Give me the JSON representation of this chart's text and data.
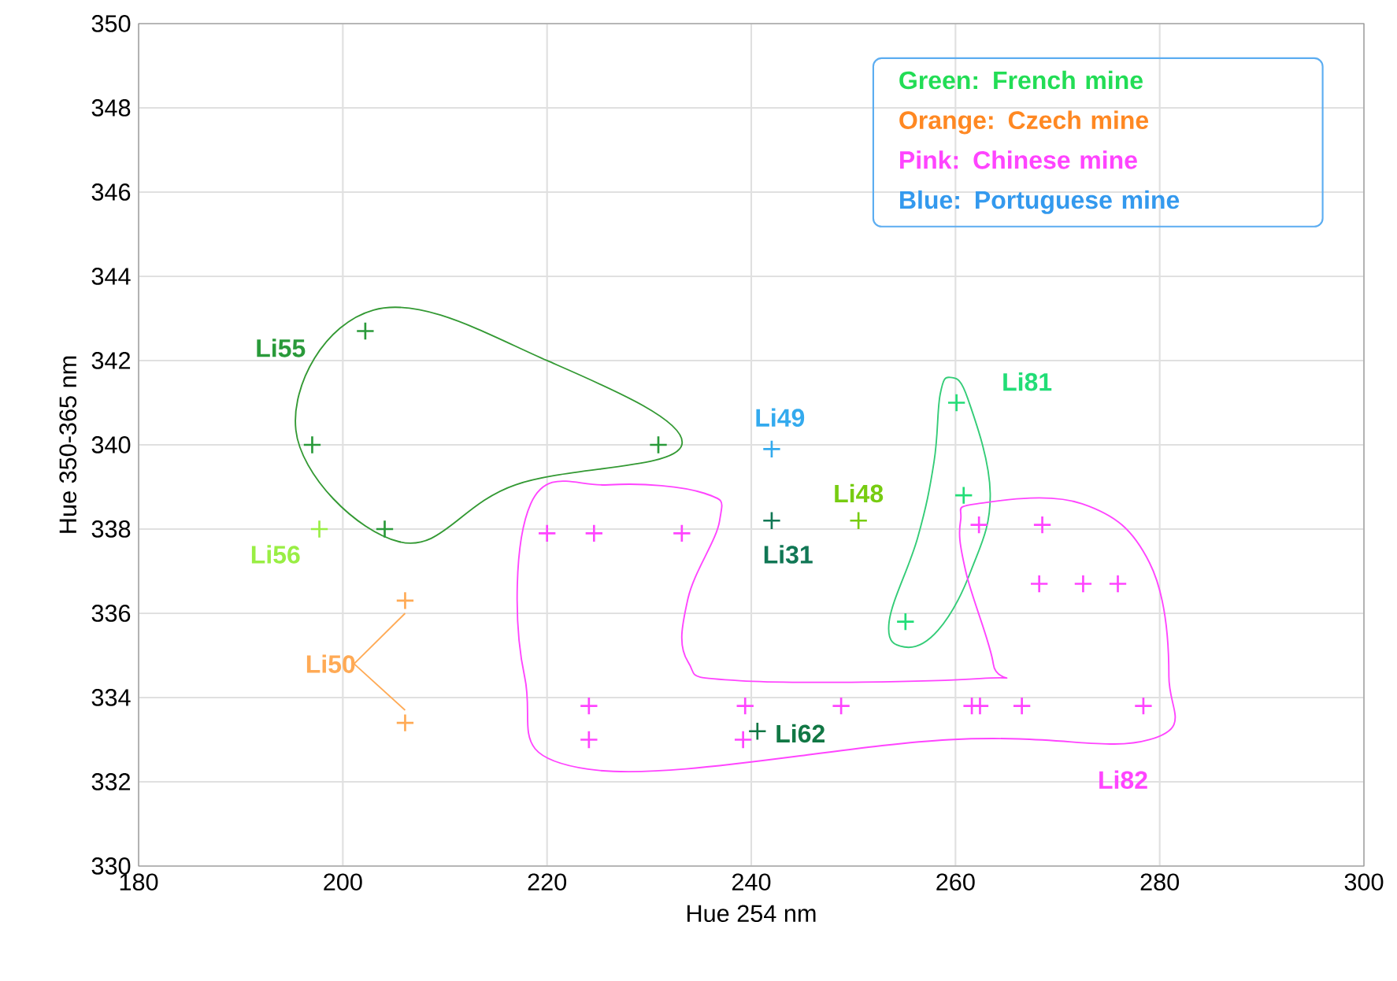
{
  "chart_data": {
    "type": "scatter",
    "xlabel": "Hue 254 nm",
    "ylabel": "Hue 350-365 nm",
    "xlim": [
      180,
      300
    ],
    "ylim": [
      330,
      350
    ],
    "xticks": [
      180,
      200,
      220,
      240,
      260,
      280,
      300
    ],
    "yticks": [
      330,
      332,
      334,
      336,
      338,
      340,
      342,
      344,
      346,
      348,
      350
    ],
    "grid": true,
    "marker": "cross",
    "annotations": [
      "Green: French mine",
      "Orange: Czech mine",
      "Pink: Chinese mine",
      "Blue: Portuguese mine"
    ],
    "series": [
      {
        "name": "Li55",
        "color": "#2a9a3a",
        "x": [
          202.2,
          197.0,
          230.9,
          204.1
        ],
        "values": [
          342.7,
          340.0,
          340.0,
          338.0
        ]
      },
      {
        "name": "Li56",
        "color": "#99ee44",
        "x": [
          197.7
        ],
        "values": [
          338.0
        ]
      },
      {
        "name": "Li50",
        "color": "#ffaa55",
        "x": [
          206.1,
          206.1
        ],
        "values": [
          336.3,
          333.4
        ]
      },
      {
        "name": "Li49",
        "color": "#33aaee",
        "x": [
          242.0
        ],
        "values": [
          339.9
        ]
      },
      {
        "name": "Li31",
        "color": "#117755",
        "x": [
          242.0
        ],
        "values": [
          338.2
        ]
      },
      {
        "name": "Li48",
        "color": "#77cc11",
        "x": [
          250.5
        ],
        "values": [
          338.2
        ]
      },
      {
        "name": "Li62",
        "color": "#117744",
        "x": [
          240.6
        ],
        "values": [
          333.2
        ]
      },
      {
        "name": "Li81",
        "color": "#22dd77",
        "x": [
          260.1,
          260.8,
          255.1
        ],
        "values": [
          341.0,
          338.8,
          335.8
        ]
      },
      {
        "name": "Li82",
        "color": "#ff44ff",
        "x": [
          220.0,
          224.6,
          233.2,
          262.3,
          268.5,
          268.2,
          272.5,
          275.9,
          224.1,
          239.4,
          248.8,
          261.6,
          262.4,
          266.5,
          278.4,
          224.1,
          239.2
        ],
        "values": [
          337.9,
          337.9,
          337.9,
          338.1,
          338.1,
          336.7,
          336.7,
          336.7,
          333.8,
          333.8,
          333.8,
          333.8,
          333.8,
          333.8,
          333.8,
          333.0,
          333.0
        ]
      }
    ]
  }
}
